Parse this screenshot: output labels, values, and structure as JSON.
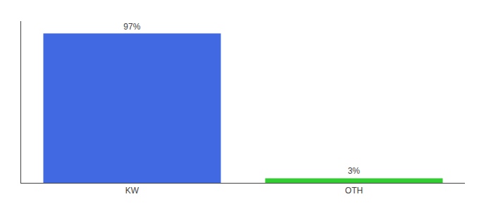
{
  "chart_data": {
    "type": "bar",
    "categories": [
      "KW",
      "OTH"
    ],
    "values": [
      97,
      3
    ],
    "colors": [
      "#4169e1",
      "#33cc33"
    ],
    "data_labels": true,
    "value_labels": [
      "97%",
      "3%"
    ],
    "ylim": [
      0,
      105
    ],
    "yticks": [],
    "tick_labels": "x",
    "grid": false
  }
}
